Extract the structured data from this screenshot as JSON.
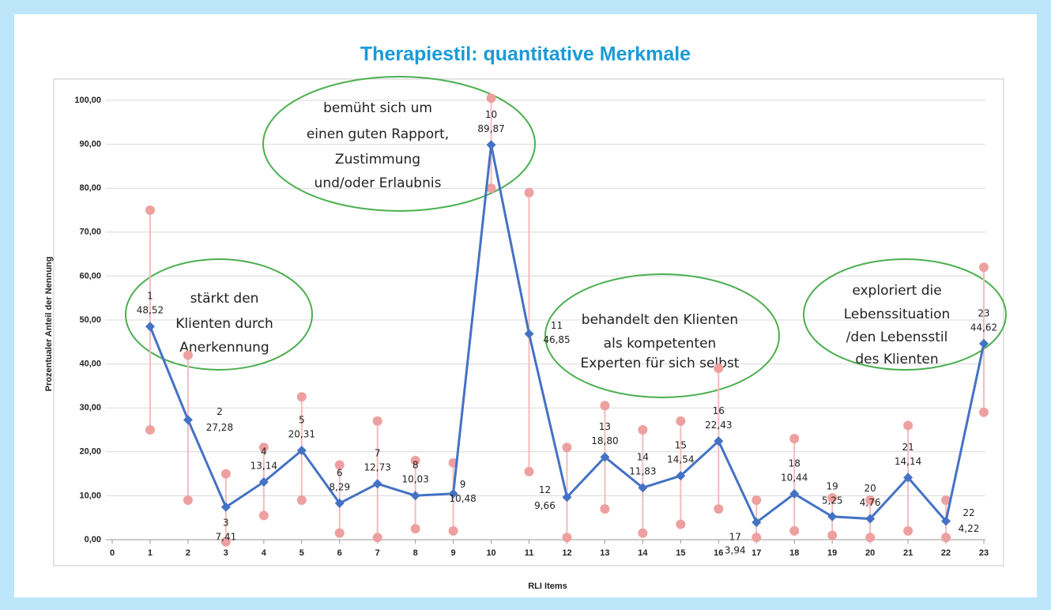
{
  "chart_data": {
    "type": "line",
    "title": "Therapiestil: quantitative Merkmale",
    "ylabel": "Prozentualer Anteil der Nennung",
    "xlabel": "RLI Items",
    "x": [
      1,
      2,
      3,
      4,
      5,
      6,
      7,
      8,
      9,
      10,
      11,
      12,
      13,
      14,
      15,
      16,
      17,
      18,
      19,
      20,
      21,
      22,
      23
    ],
    "values": [
      48.52,
      27.28,
      7.41,
      13.14,
      20.31,
      8.29,
      12.73,
      10.03,
      10.48,
      89.87,
      46.85,
      9.66,
      18.8,
      11.83,
      14.54,
      22.43,
      3.94,
      10.44,
      5.25,
      4.76,
      14.14,
      4.22,
      44.62
    ],
    "value_labels": [
      "48,52",
      "27,28",
      "7,41",
      "13,14",
      "20,31",
      "8,29",
      "12,73",
      "10,03",
      "10,48",
      "89,87",
      "46,85",
      "9,66",
      "18,80",
      "11,83",
      "14,54",
      "22,43",
      "3,94",
      "10,44",
      "5,25",
      "4,76",
      "14,14",
      "4,22",
      "44,62"
    ],
    "lower": [
      25,
      9,
      -0.5,
      5.5,
      9,
      1.5,
      0.5,
      2.5,
      2,
      80,
      15.5,
      0.5,
      7,
      1.5,
      3.5,
      7,
      0.5,
      2,
      1,
      0.5,
      2,
      0.5,
      29
    ],
    "upper": [
      75,
      42,
      15,
      21,
      32.5,
      17,
      27,
      18,
      17.5,
      100.5,
      79,
      21,
      30.5,
      25,
      27,
      39,
      9,
      23,
      9.5,
      9,
      26,
      9,
      62
    ],
    "color": "#4472c4",
    "range_color": "#eea0a0",
    "xlim": [
      0,
      23
    ],
    "xticks": [
      0,
      1,
      2,
      3,
      4,
      5,
      6,
      7,
      8,
      9,
      10,
      11,
      12,
      13,
      14,
      15,
      16,
      17,
      18,
      19,
      20,
      21,
      22,
      23
    ],
    "ylim": [
      0,
      100
    ],
    "yticks": [
      {
        "value": 0,
        "label": "0,00"
      },
      {
        "value": 10,
        "label": "10,00"
      },
      {
        "value": 20,
        "label": "20,00"
      },
      {
        "value": 30,
        "label": "30,00"
      },
      {
        "value": 40,
        "label": "40,00"
      },
      {
        "value": 50,
        "label": "50,00"
      },
      {
        "value": 60,
        "label": "60,00"
      },
      {
        "value": 70,
        "label": "70,00"
      },
      {
        "value": 80,
        "label": "80,00"
      },
      {
        "value": 90,
        "label": "90,00"
      },
      {
        "value": 100,
        "label": "100,00"
      }
    ],
    "grid": true,
    "annotations": [
      [
        "stärkt den",
        "Klienten durch",
        "Anerkennung"
      ],
      [
        "bemüht sich um",
        "einen guten Rapport,",
        "Zustimmung",
        "und/oder Erlaubnis"
      ],
      [
        "behandelt den Klienten",
        "als kompetenten",
        "Experten für sich selbst"
      ],
      [
        "exploriert die",
        "Lebenssituation",
        "/den Lebensstil",
        "des Klienten"
      ]
    ]
  }
}
